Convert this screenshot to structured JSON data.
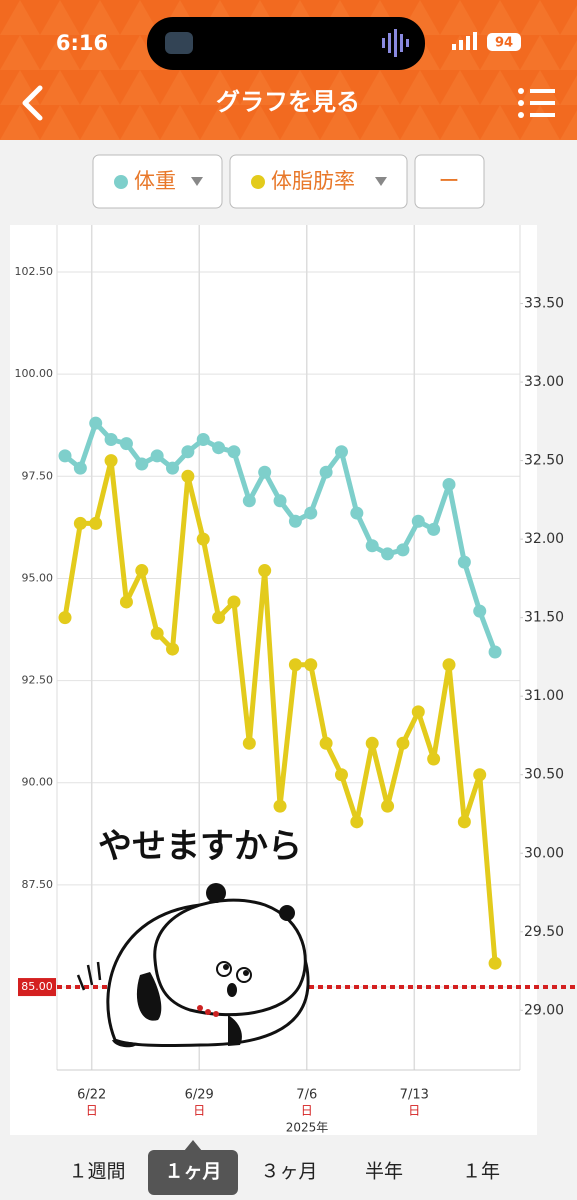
{
  "status": {
    "time": "6:16",
    "battery": "94"
  },
  "header": {
    "title": "グラフを見る"
  },
  "filters": [
    {
      "label": "体重",
      "color": "#7ecfcb"
    },
    {
      "label": "体脂肪率",
      "color": "#e3cb1c"
    },
    {
      "label": "ー"
    }
  ],
  "chart_data": {
    "type": "line",
    "categories": [
      null,
      null,
      "6/22",
      null,
      null,
      null,
      null,
      null,
      null,
      "6/29",
      null,
      null,
      null,
      null,
      null,
      null,
      "7/6",
      null,
      null,
      null,
      null,
      null,
      null,
      "7/13",
      null,
      null,
      null,
      null,
      null
    ],
    "weekday_labels": [
      null,
      null,
      "日",
      null,
      null,
      null,
      null,
      null,
      null,
      "日",
      null,
      null,
      null,
      null,
      null,
      null,
      "日",
      null,
      null,
      null,
      null,
      null,
      null,
      "日",
      null,
      null,
      null,
      null,
      null
    ],
    "x_label": "2025年",
    "series": [
      {
        "name": "体重",
        "color": "#7ecfcb",
        "values": [
          98.0,
          97.7,
          98.8,
          98.4,
          98.3,
          97.8,
          98.0,
          97.7,
          98.1,
          98.4,
          98.2,
          98.1,
          96.9,
          97.6,
          96.9,
          96.4,
          96.6,
          97.6,
          98.1,
          96.6,
          95.8,
          95.6,
          95.7,
          96.4,
          96.2,
          97.3,
          95.4,
          94.2,
          93.2
        ]
      },
      {
        "name": "体脂肪率",
        "color": "#e3cb1c",
        "axis": "y2",
        "values": [
          31.5,
          32.1,
          32.1,
          32.5,
          31.6,
          31.8,
          31.4,
          31.3,
          32.4,
          32.0,
          31.5,
          31.6,
          30.7,
          31.8,
          30.3,
          31.2,
          31.2,
          30.7,
          30.5,
          30.2,
          30.7,
          30.3,
          30.7,
          30.9,
          30.6,
          31.2,
          30.2,
          30.5,
          29.3
        ]
      }
    ],
    "ylim": [
      82.97,
      103.65
    ],
    "yticks": [
      {
        "value": 85,
        "label": "85.00"
      },
      {
        "value": 87.5,
        "label": "87.50"
      },
      {
        "value": 90,
        "label": "90.00"
      },
      {
        "value": 92.5,
        "label": "92.50"
      },
      {
        "value": 95,
        "label": "95.00"
      },
      {
        "value": 97.5,
        "label": "97.50"
      },
      {
        "value": 100,
        "label": "100.00"
      },
      {
        "value": 102.5,
        "label": "102.50"
      }
    ],
    "y2lim": [
      28.62,
      34.0
    ],
    "y2ticks": [
      {
        "value": 29,
        "label": "29.00"
      },
      {
        "value": 29.5,
        "label": "29.50"
      },
      {
        "value": 30,
        "label": "30.00"
      },
      {
        "value": 30.5,
        "label": "30.50"
      },
      {
        "value": 31,
        "label": "31.00"
      },
      {
        "value": 31.5,
        "label": "31.50"
      },
      {
        "value": 32,
        "label": "32.00"
      },
      {
        "value": 32.5,
        "label": "32.50"
      },
      {
        "value": 33,
        "label": "33.00"
      },
      {
        "value": 33.5,
        "label": "33.50"
      }
    ],
    "target": {
      "value": 85,
      "label": "85.00",
      "color": "#d42020"
    },
    "grid": true,
    "sticker_text": "やせますから"
  },
  "tabs": [
    "１週間",
    "１ヶ月",
    "３ヶ月",
    "半年",
    "１年"
  ],
  "selected_tab": 1
}
